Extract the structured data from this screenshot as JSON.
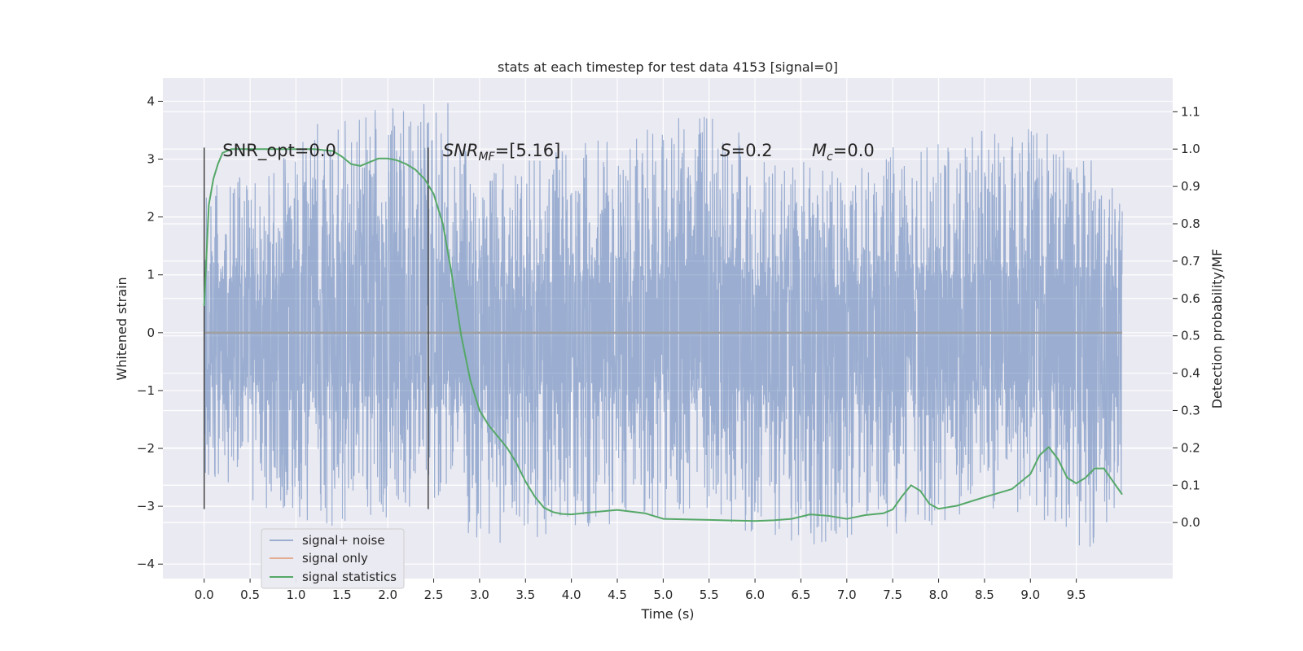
{
  "chart_data": {
    "type": "line",
    "title": "stats at each timestep for test data 4153 [signal=0]",
    "xlabel": "Time (s)",
    "ylabel": "Whitened strain",
    "y2label": "Detection probability/MF",
    "xlim": [
      -0.45,
      10.55
    ],
    "ylim": [
      -4.25,
      4.4
    ],
    "y2lim": [
      -0.15,
      1.19
    ],
    "grid": true,
    "legend_position": "lower-left",
    "x_ticks": [
      0.0,
      0.5,
      1.0,
      1.5,
      2.0,
      2.5,
      3.0,
      3.5,
      4.0,
      4.5,
      5.0,
      5.5,
      6.0,
      6.5,
      7.0,
      7.5,
      8.0,
      8.5,
      9.0,
      9.5
    ],
    "x_tick_labels": [
      "0.0",
      "0.5",
      "1.0",
      "1.5",
      "2.0",
      "2.5",
      "3.0",
      "3.5",
      "4.0",
      "4.5",
      "5.0",
      "5.5",
      "6.0",
      "6.5",
      "7.0",
      "7.5",
      "8.0",
      "8.5",
      "9.0",
      "9.5"
    ],
    "y_ticks": [
      -4,
      -3,
      -2,
      -1,
      0,
      1,
      2,
      3,
      4
    ],
    "y_tick_labels": [
      "−4",
      "−3",
      "−2",
      "−1",
      "0",
      "1",
      "2",
      "3",
      "4"
    ],
    "y2_ticks": [
      0.0,
      0.1,
      0.2,
      0.3,
      0.4,
      0.5,
      0.6,
      0.7,
      0.8,
      0.9,
      1.0,
      1.1
    ],
    "y2_tick_labels": [
      "0.0",
      "0.1",
      "0.2",
      "0.3",
      "0.4",
      "0.5",
      "0.6",
      "0.7",
      "0.8",
      "0.9",
      "1.0",
      "1.1"
    ],
    "annotations": [
      {
        "text": "SNR_opt=0.0",
        "x": 0.2,
        "y": 3.15
      },
      {
        "text": "SNR",
        "sub": "MF",
        "suffix": "=[5.16]",
        "italic": true,
        "x": 2.6,
        "y": 3.15
      },
      {
        "text": "S",
        "suffix": "=0.2",
        "italic": true,
        "x": 5.62,
        "y": 3.15
      },
      {
        "text": "M",
        "sub": "c",
        "suffix": "=0.0",
        "italic": true,
        "x": 6.62,
        "y": 3.15
      }
    ],
    "vlines": [
      {
        "x": 0.0,
        "y_from": -3.05,
        "y_to": 3.2
      },
      {
        "x": 2.44,
        "y_from": -3.05,
        "y_to": 3.2
      }
    ],
    "series": [
      {
        "name": "signal+ noise",
        "color": "#4c72b0",
        "opacity": 0.5,
        "axis": "left",
        "description": "dense noise trace, 0 to 10 s",
        "x_range": [
          0.0,
          10.0
        ],
        "envelope": [
          {
            "x": 0.0,
            "min": -2.5,
            "max": 2.5
          },
          {
            "x": 0.75,
            "min": -3.1,
            "max": 2.9
          },
          {
            "x": 1.5,
            "min": -3.4,
            "max": 4.05
          },
          {
            "x": 2.7,
            "min": -2.9,
            "max": 3.98
          },
          {
            "x": 2.95,
            "min": -3.7,
            "max": 2.8
          },
          {
            "x": 5.5,
            "min": -3.1,
            "max": 3.85
          },
          {
            "x": 6.3,
            "min": -3.8,
            "max": 2.9
          },
          {
            "x": 9.0,
            "min": -3.1,
            "max": 3.65
          },
          {
            "x": 9.7,
            "min": -3.9,
            "max": 3.0
          },
          {
            "x": 10.0,
            "min": -3.1,
            "max": 2.5
          }
        ]
      },
      {
        "name": "signal only",
        "color": "#dd8452",
        "axis": "left",
        "x": [
          0.0,
          10.0
        ],
        "values": [
          0.0,
          0.0
        ]
      },
      {
        "name": "signal statistics",
        "color": "#55a868",
        "axis": "right",
        "x": [
          0.0,
          0.05,
          0.1,
          0.15,
          0.2,
          0.3,
          0.5,
          0.8,
          1.0,
          1.2,
          1.4,
          1.5,
          1.6,
          1.7,
          1.8,
          1.9,
          2.0,
          2.1,
          2.2,
          2.3,
          2.4,
          2.5,
          2.6,
          2.7,
          2.8,
          2.9,
          3.0,
          3.1,
          3.2,
          3.3,
          3.4,
          3.5,
          3.6,
          3.7,
          3.8,
          3.9,
          4.0,
          4.2,
          4.5,
          4.8,
          5.0,
          5.5,
          6.0,
          6.2,
          6.4,
          6.6,
          6.8,
          7.0,
          7.2,
          7.4,
          7.5,
          7.6,
          7.7,
          7.8,
          7.9,
          8.0,
          8.2,
          8.5,
          8.8,
          9.0,
          9.1,
          9.2,
          9.3,
          9.4,
          9.5,
          9.6,
          9.7,
          9.8,
          9.9,
          10.0
        ],
        "values": [
          0.58,
          0.85,
          0.92,
          0.96,
          0.99,
          1.0,
          1.0,
          1.0,
          1.0,
          1.0,
          0.995,
          0.98,
          0.96,
          0.955,
          0.965,
          0.975,
          0.975,
          0.97,
          0.96,
          0.945,
          0.92,
          0.88,
          0.8,
          0.66,
          0.5,
          0.38,
          0.3,
          0.26,
          0.23,
          0.2,
          0.16,
          0.11,
          0.07,
          0.04,
          0.028,
          0.023,
          0.022,
          0.027,
          0.034,
          0.025,
          0.01,
          0.007,
          0.004,
          0.006,
          0.01,
          0.022,
          0.018,
          0.01,
          0.02,
          0.025,
          0.035,
          0.07,
          0.1,
          0.085,
          0.05,
          0.037,
          0.045,
          0.068,
          0.09,
          0.13,
          0.18,
          0.202,
          0.17,
          0.12,
          0.105,
          0.12,
          0.145,
          0.145,
          0.11,
          0.075
        ]
      }
    ]
  }
}
